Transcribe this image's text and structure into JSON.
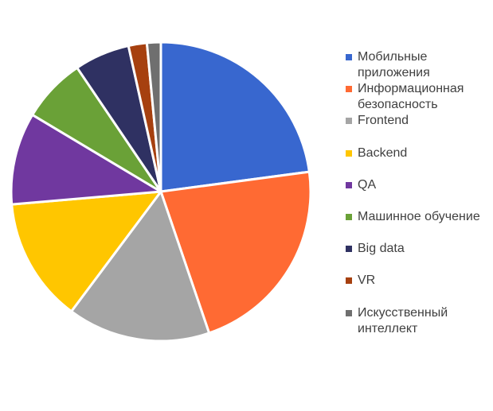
{
  "chart_data": {
    "type": "pie",
    "title": "",
    "start_angle_deg": 0,
    "direction": "clockwise",
    "legend_position": "right",
    "slices": [
      {
        "label": "Мобильные приложения",
        "value": 23.0,
        "color": "#3867CF"
      },
      {
        "label": "Информационная безопасность",
        "value": 22.0,
        "color": "#FF6A33"
      },
      {
        "label": "Frontend",
        "value": 15.5,
        "color": "#A5A5A5"
      },
      {
        "label": "Backend",
        "value": 13.5,
        "color": "#FFC600"
      },
      {
        "label": "QA",
        "value": 10.0,
        "color": "#70389F"
      },
      {
        "label": "Машинное обучение",
        "value": 7.0,
        "color": "#6AA137"
      },
      {
        "label": "Big data",
        "value": 6.0,
        "color": "#2F3162"
      },
      {
        "label": "VR",
        "value": 2.0,
        "color": "#A6400F"
      },
      {
        "label": "Искусственный интеллект",
        "value": 1.5,
        "color": "#6F6F6F"
      }
    ]
  }
}
